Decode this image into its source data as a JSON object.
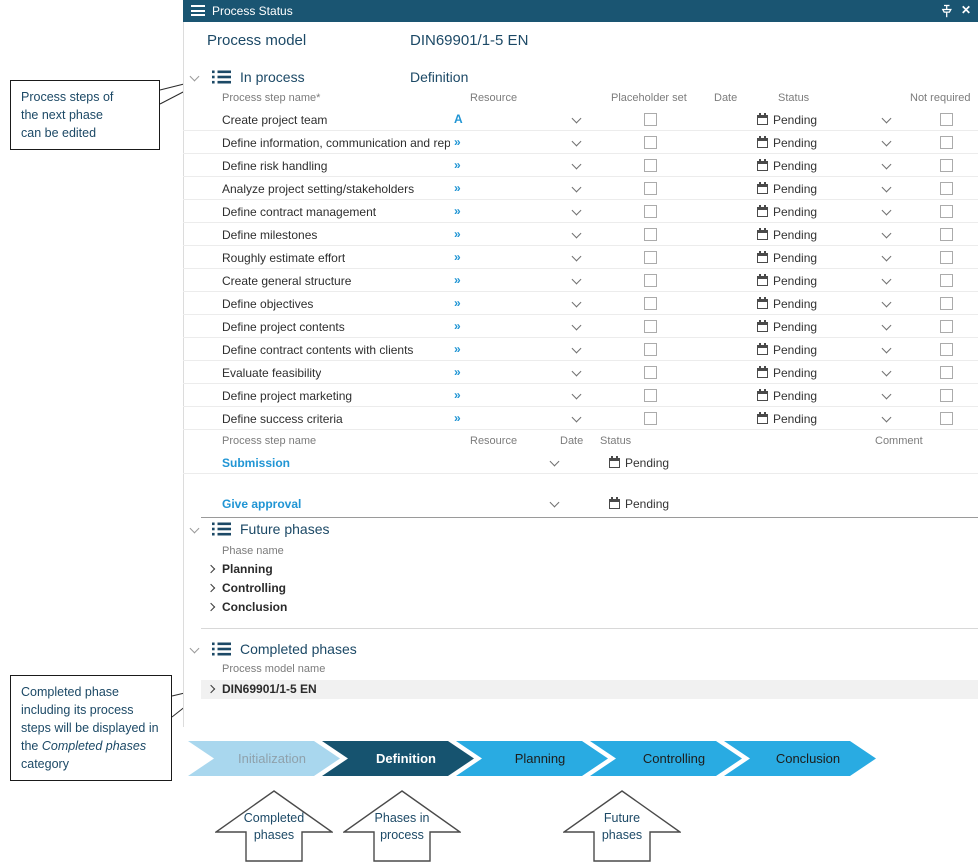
{
  "panel": {
    "title": "Process Status"
  },
  "header": {
    "label": "Process model",
    "value": "DIN69901/1-5 EN"
  },
  "in_process": {
    "title": "In process",
    "phase": "Definition",
    "columns": {
      "name": "Process step name*",
      "resource": "Resource",
      "placeholder": "Placeholder set",
      "date": "Date",
      "status": "Status",
      "not_required": "Not required"
    },
    "rows": [
      {
        "name": "Create project team",
        "resource": "A",
        "status": "Pending"
      },
      {
        "name": "Define information, communication and rep...",
        "resource": "»",
        "status": "Pending"
      },
      {
        "name": "Define risk handling",
        "resource": "»",
        "status": "Pending"
      },
      {
        "name": "Analyze project setting/stakeholders",
        "resource": "»",
        "status": "Pending"
      },
      {
        "name": "Define contract management",
        "resource": "»",
        "status": "Pending"
      },
      {
        "name": "Define milestones",
        "resource": "»",
        "status": "Pending"
      },
      {
        "name": "Roughly estimate effort",
        "resource": "»",
        "status": "Pending"
      },
      {
        "name": "Create general structure",
        "resource": "»",
        "status": "Pending"
      },
      {
        "name": "Define objectives",
        "resource": "»",
        "status": "Pending"
      },
      {
        "name": "Define project contents",
        "resource": "»",
        "status": "Pending"
      },
      {
        "name": "Define contract contents with clients",
        "resource": "»",
        "status": "Pending"
      },
      {
        "name": "Evaluate feasibility",
        "resource": "»",
        "status": "Pending"
      },
      {
        "name": "Define project marketing",
        "resource": "»",
        "status": "Pending"
      },
      {
        "name": "Define success criteria",
        "resource": "»",
        "status": "Pending"
      }
    ]
  },
  "approval": {
    "columns": {
      "name": "Process step name",
      "resource": "Resource",
      "date": "Date",
      "status": "Status",
      "comment": "Comment"
    },
    "rows": [
      {
        "name": "Submission",
        "status": "Pending"
      },
      {
        "name": "Give approval",
        "status": "Pending"
      }
    ]
  },
  "future_phases": {
    "title": "Future phases",
    "column": "Phase name",
    "rows": [
      "Planning",
      "Controlling",
      "Conclusion"
    ]
  },
  "completed_phases": {
    "title": "Completed phases",
    "column": "Process model name",
    "rows": [
      "DIN69901/1-5 EN"
    ]
  },
  "phase_bar": [
    {
      "label": "Initialization",
      "state": "done"
    },
    {
      "label": "Definition",
      "state": "cur"
    },
    {
      "label": "Planning",
      "state": "fut"
    },
    {
      "label": "Controlling",
      "state": "fut"
    },
    {
      "label": "Conclusion",
      "state": "fut"
    }
  ],
  "legend": [
    {
      "line1": "Completed",
      "line2": "phases"
    },
    {
      "line1": "Phases in",
      "line2": "process"
    },
    {
      "line1": "Future",
      "line2": "phases"
    }
  ],
  "callouts": {
    "top_lines": [
      "Process steps of",
      "the next phase",
      "can be edited"
    ],
    "bottom_segments": [
      {
        "t": "Completed phase including its process steps will be displayed in the "
      },
      {
        "t": "Completed phases",
        "i": true
      },
      {
        "t": " category"
      }
    ]
  },
  "colors": {
    "titlebar": "#1a5572",
    "navy": "#1c4966",
    "accent": "#2095d4",
    "phase_completed": "#a9d7ee",
    "phase_current": "#16536f",
    "phase_future": "#29abe2"
  }
}
